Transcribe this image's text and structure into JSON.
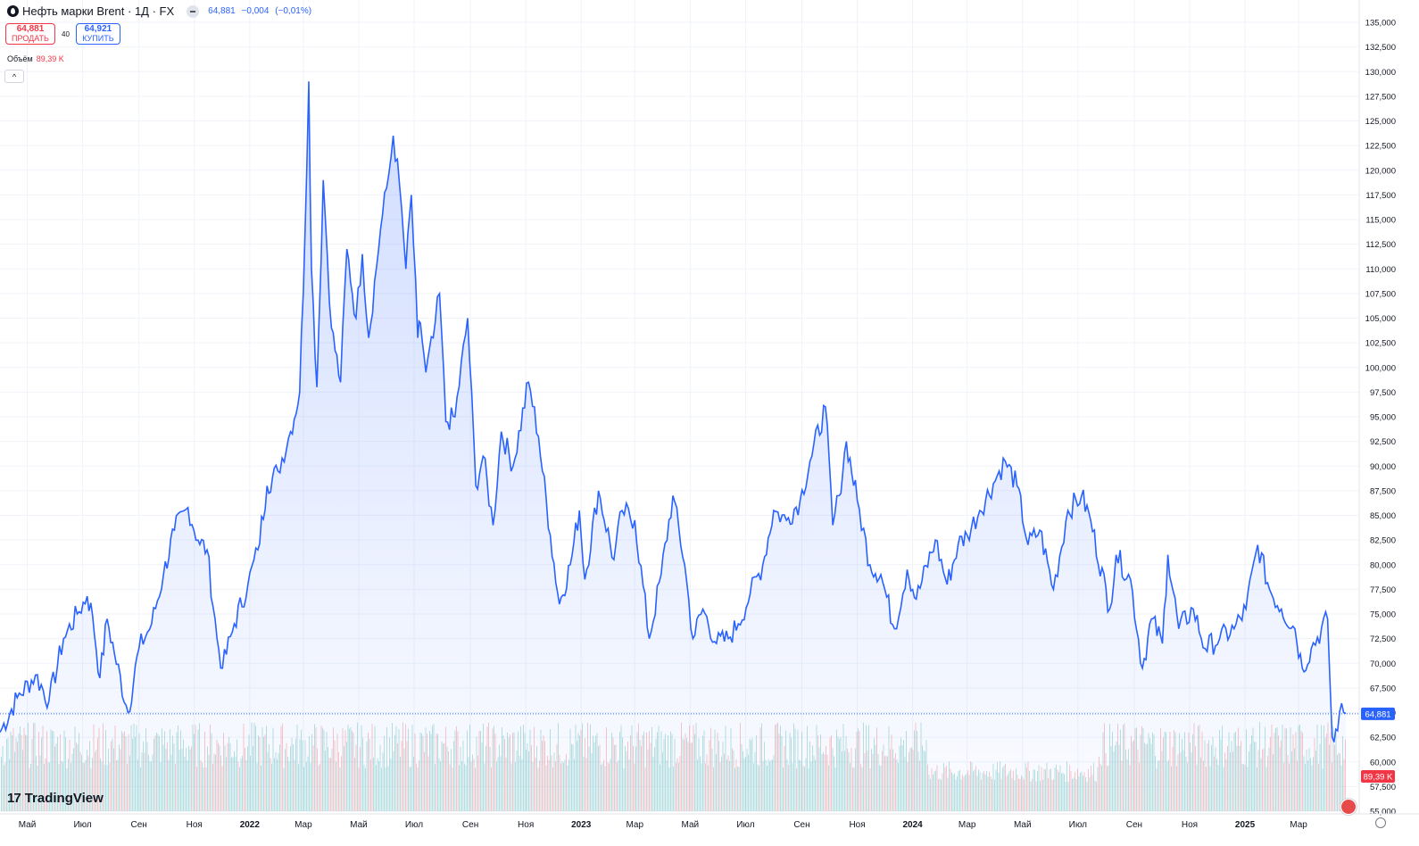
{
  "header": {
    "title": "Нефть марки Brent · 1Д · FX",
    "last": "64,881",
    "change": "−0,004",
    "change_pct": "(−0,01%)"
  },
  "trade": {
    "sell_price": "64,881",
    "sell_label": "ПРОДАТЬ",
    "spread": "40",
    "buy_price": "64,921",
    "buy_label": "КУПИТЬ"
  },
  "volume": {
    "label": "Объём",
    "value": "89,39 K"
  },
  "collapse_label": "^",
  "logo": {
    "mark": "17",
    "text": "TradingView"
  },
  "colors": {
    "line": "#2962ff",
    "vol_up": "#26a69a",
    "vol_down": "#ef5350",
    "current": "#2962ff",
    "vol_badge": "#f23645"
  },
  "chart_data": {
    "type": "area",
    "x_ticks": [
      "Май",
      "Июл",
      "Сен",
      "Ноя",
      "2022",
      "Мар",
      "Май",
      "Июл",
      "Сен",
      "Ноя",
      "2023",
      "Мар",
      "Май",
      "Июл",
      "Сен",
      "Ноя",
      "2024",
      "Мар",
      "Май",
      "Июл",
      "Сен",
      "Ноя",
      "2025",
      "Мар"
    ],
    "y_ticks": [
      "55,000",
      "57,500",
      "60,000",
      "62,500",
      "65,000",
      "67,500",
      "70,000",
      "72,500",
      "75,000",
      "77,500",
      "80,000",
      "82,500",
      "85,000",
      "87,500",
      "90,000",
      "92,500",
      "95,000",
      "97,500",
      "100,000",
      "102,500",
      "105,000",
      "107,500",
      "110,000",
      "112,500",
      "115,000",
      "117,500",
      "120,000",
      "122,500",
      "125,000",
      "127,500",
      "130,000",
      "132,500",
      "135,000"
    ],
    "ylim": [
      55,
      135
    ],
    "current_value": 64.881,
    "current_label": "64,881",
    "volume_badge": "89,39 K",
    "series": [
      {
        "values": [
          [
            "2021-04-01",
            63.0
          ],
          [
            "2021-04-20",
            66.5
          ],
          [
            "2021-05-10",
            68.8
          ],
          [
            "2021-05-25",
            66.2
          ],
          [
            "2021-06-10",
            72.5
          ],
          [
            "2021-06-25",
            75.0
          ],
          [
            "2021-07-06",
            76.8
          ],
          [
            "2021-07-12",
            74.8
          ],
          [
            "2021-07-20",
            68.5
          ],
          [
            "2021-07-28",
            74.5
          ],
          [
            "2021-08-05",
            71.0
          ],
          [
            "2021-08-20",
            65.0
          ],
          [
            "2021-09-01",
            71.5
          ],
          [
            "2021-09-15",
            74.0
          ],
          [
            "2021-09-28",
            79.0
          ],
          [
            "2021-10-10",
            83.5
          ],
          [
            "2021-10-25",
            85.8
          ],
          [
            "2021-11-05",
            82.5
          ],
          [
            "2021-11-15",
            81.5
          ],
          [
            "2021-11-26",
            72.5
          ],
          [
            "2021-12-02",
            69.5
          ],
          [
            "2021-12-15",
            74.0
          ],
          [
            "2021-12-30",
            78.0
          ],
          [
            "2022-01-10",
            81.5
          ],
          [
            "2022-01-20",
            88.0
          ],
          [
            "2022-02-01",
            89.5
          ],
          [
            "2022-02-15",
            93.5
          ],
          [
            "2022-02-25",
            97.5
          ],
          [
            "2022-03-03",
            114.0
          ],
          [
            "2022-03-07",
            129.0
          ],
          [
            "2022-03-10",
            110.0
          ],
          [
            "2022-03-16",
            98.0
          ],
          [
            "2022-03-23",
            119.0
          ],
          [
            "2022-04-01",
            104.0
          ],
          [
            "2022-04-11",
            98.5
          ],
          [
            "2022-04-18",
            112.0
          ],
          [
            "2022-04-28",
            105.0
          ],
          [
            "2022-05-05",
            111.5
          ],
          [
            "2022-05-12",
            103.0
          ],
          [
            "2022-05-25",
            114.0
          ],
          [
            "2022-06-03",
            119.5
          ],
          [
            "2022-06-08",
            123.5
          ],
          [
            "2022-06-15",
            118.5
          ],
          [
            "2022-06-22",
            110.0
          ],
          [
            "2022-06-28",
            117.5
          ],
          [
            "2022-07-05",
            103.0
          ],
          [
            "2022-07-08",
            104.5
          ],
          [
            "2022-07-14",
            99.5
          ],
          [
            "2022-07-22",
            103.0
          ],
          [
            "2022-07-29",
            107.5
          ],
          [
            "2022-08-05",
            94.5
          ],
          [
            "2022-08-15",
            95.0
          ],
          [
            "2022-08-29",
            105.0
          ],
          [
            "2022-09-07",
            88.0
          ],
          [
            "2022-09-15",
            91.0
          ],
          [
            "2022-09-26",
            84.0
          ],
          [
            "2022-10-05",
            93.5
          ],
          [
            "2022-10-18",
            90.0
          ],
          [
            "2022-11-04",
            98.5
          ],
          [
            "2022-11-15",
            93.0
          ],
          [
            "2022-11-28",
            83.0
          ],
          [
            "2022-12-08",
            76.0
          ],
          [
            "2022-12-20",
            80.0
          ],
          [
            "2022-12-30",
            85.5
          ],
          [
            "2023-01-05",
            78.5
          ],
          [
            "2023-01-20",
            87.5
          ],
          [
            "2023-02-06",
            80.5
          ],
          [
            "2023-02-15",
            85.5
          ],
          [
            "2023-03-01",
            84.5
          ],
          [
            "2023-03-17",
            72.5
          ],
          [
            "2023-03-30",
            79.0
          ],
          [
            "2023-04-12",
            87.0
          ],
          [
            "2023-04-25",
            80.0
          ],
          [
            "2023-05-04",
            72.5
          ],
          [
            "2023-05-15",
            75.5
          ],
          [
            "2023-05-30",
            72.0
          ],
          [
            "2023-06-12",
            72.5
          ],
          [
            "2023-06-23",
            74.0
          ],
          [
            "2023-07-06",
            77.0
          ],
          [
            "2023-07-20",
            80.0
          ],
          [
            "2023-08-01",
            85.5
          ],
          [
            "2023-08-15",
            84.5
          ],
          [
            "2023-08-30",
            86.5
          ],
          [
            "2023-09-10",
            90.5
          ],
          [
            "2023-09-27",
            96.0
          ],
          [
            "2023-10-05",
            84.0
          ],
          [
            "2023-10-12",
            87.0
          ],
          [
            "2023-10-20",
            92.5
          ],
          [
            "2023-11-01",
            86.5
          ],
          [
            "2023-11-15",
            80.0
          ],
          [
            "2023-11-27",
            79.0
          ],
          [
            "2023-12-12",
            73.5
          ],
          [
            "2023-12-26",
            79.5
          ],
          [
            "2024-01-05",
            76.5
          ],
          [
            "2024-01-26",
            82.5
          ],
          [
            "2024-02-08",
            78.0
          ],
          [
            "2024-02-20",
            82.0
          ],
          [
            "2024-03-01",
            83.0
          ],
          [
            "2024-03-15",
            85.5
          ],
          [
            "2024-04-03",
            89.0
          ],
          [
            "2024-04-12",
            90.5
          ],
          [
            "2024-04-25",
            88.0
          ],
          [
            "2024-05-07",
            82.0
          ],
          [
            "2024-05-20",
            83.5
          ],
          [
            "2024-06-04",
            77.5
          ],
          [
            "2024-06-20",
            85.5
          ],
          [
            "2024-07-05",
            87.0
          ],
          [
            "2024-07-15",
            84.5
          ],
          [
            "2024-08-05",
            75.5
          ],
          [
            "2024-08-12",
            81.0
          ],
          [
            "2024-08-28",
            78.5
          ],
          [
            "2024-09-10",
            69.5
          ],
          [
            "2024-09-20",
            74.5
          ],
          [
            "2024-10-02",
            72.0
          ],
          [
            "2024-10-08",
            81.0
          ],
          [
            "2024-10-20",
            73.5
          ],
          [
            "2024-11-05",
            75.5
          ],
          [
            "2024-11-18",
            71.5
          ],
          [
            "2024-12-04",
            72.5
          ],
          [
            "2024-12-20",
            73.5
          ],
          [
            "2025-01-02",
            75.5
          ],
          [
            "2025-01-15",
            82.0
          ],
          [
            "2025-01-28",
            77.5
          ],
          [
            "2025-02-10",
            75.5
          ],
          [
            "2025-02-25",
            73.5
          ],
          [
            "2025-03-05",
            69.5
          ],
          [
            "2025-03-15",
            71.5
          ],
          [
            "2025-04-02",
            74.5
          ],
          [
            "2025-04-07",
            62.5
          ],
          [
            "2025-04-09",
            62.0
          ],
          [
            "2025-04-15",
            65.0
          ],
          [
            "2025-04-22",
            64.9
          ]
        ]
      }
    ]
  }
}
